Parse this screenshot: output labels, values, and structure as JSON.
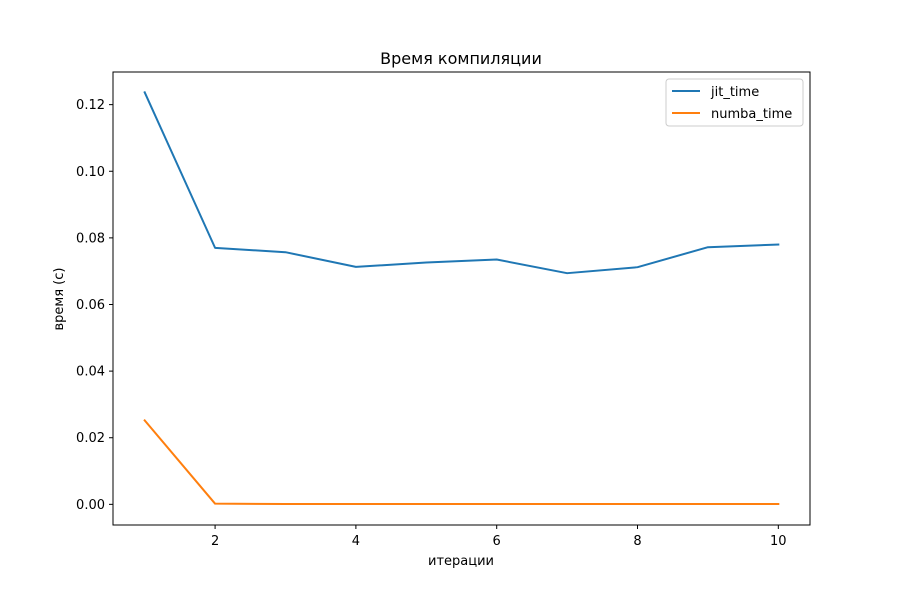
{
  "chart_data": {
    "type": "line",
    "title": "Время компиляции",
    "xlabel": "итерации",
    "ylabel": "время (с)",
    "x": [
      1,
      2,
      3,
      4,
      5,
      6,
      7,
      8,
      9,
      10
    ],
    "series": [
      {
        "name": "jit_time",
        "color": "#1f77b4",
        "values": [
          0.1237,
          0.077,
          0.0757,
          0.0713,
          0.0726,
          0.0735,
          0.0694,
          0.0712,
          0.0772,
          0.078
        ]
      },
      {
        "name": "numba_time",
        "color": "#ff7f0e",
        "values": [
          0.0252,
          0.0002,
          0.0001,
          0.0001,
          0.0001,
          0.0001,
          0.0001,
          0.0001,
          0.0001,
          0.0001
        ]
      }
    ],
    "xlim": [
      0.55,
      10.45
    ],
    "ylim": [
      -0.0062,
      0.1298
    ],
    "xticks": [
      2,
      4,
      6,
      8,
      10
    ],
    "xtick_labels": [
      "2",
      "4",
      "6",
      "8",
      "10"
    ],
    "yticks": [
      0.0,
      0.02,
      0.04,
      0.06,
      0.08,
      0.1,
      0.12
    ],
    "ytick_labels": [
      "0.00",
      "0.02",
      "0.04",
      "0.06",
      "0.08",
      "0.10",
      "0.12"
    ],
    "grid": false,
    "legend_position": "top-right"
  }
}
